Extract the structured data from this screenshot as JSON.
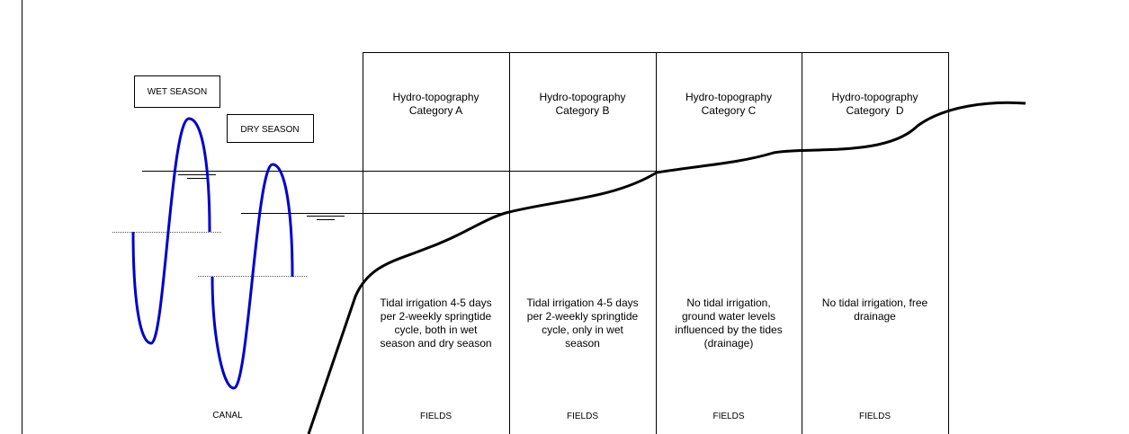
{
  "seasons": {
    "wet": "WET SEASON",
    "dry": "DRY SEASON"
  },
  "canal": "CANAL",
  "columns": [
    {
      "title": [
        "Hydro-topography",
        "Category A"
      ],
      "description": [
        "Tidal irrigation 4-5 days",
        "per 2-weekly springtide",
        "cycle, both in wet",
        "season and dry season"
      ],
      "footer": "FIELDS"
    },
    {
      "title": [
        "Hydro-topography",
        "Category B"
      ],
      "description": [
        "Tidal irrigation 4-5 days",
        "per 2-weekly springtide",
        "cycle, only in wet",
        "season"
      ],
      "footer": "FIELDS"
    },
    {
      "title": [
        "Hydro-topography",
        "Category C"
      ],
      "description": [
        "No tidal irrigation,",
        "ground water levels",
        "influenced by the tides",
        "(drainage)"
      ],
      "footer": "FIELDS"
    },
    {
      "title": [
        "Hydro-topography",
        "Category  D"
      ],
      "description": [
        "No tidal irrigation, free",
        "drainage"
      ],
      "footer": "FIELDS"
    }
  ]
}
